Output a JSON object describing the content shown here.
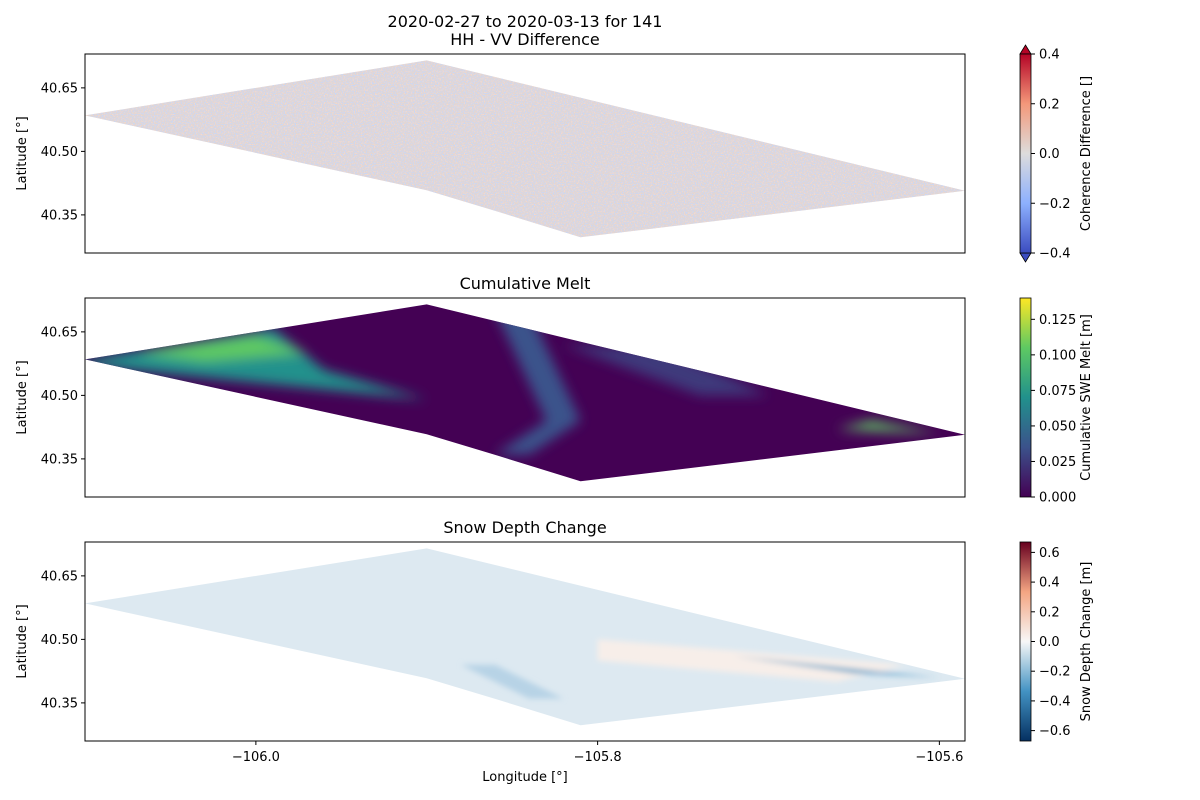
{
  "figure": {
    "title_line1": "2020-02-27 to 2020-03-13 for 141",
    "xlabel": "Longitude [°]"
  },
  "chart_data": [
    {
      "type": "heatmap",
      "title": "HH - VV Difference",
      "ylabel": "Latitude [°]",
      "xlim": [
        -106.1,
        -105.585
      ],
      "ylim": [
        40.26,
        40.73
      ],
      "yticks": [
        40.35,
        40.5,
        40.65
      ],
      "ytick_labels": [
        "40.35",
        "40.50",
        "40.65"
      ],
      "colormap": "coolwarm",
      "colors": [
        "#3b4cc0",
        "#8db0fe",
        "#dddcdc",
        "#f4987a",
        "#b40426"
      ],
      "colorbar": {
        "label": "Coherence Difference []",
        "range": [
          -0.4,
          0.4
        ],
        "ticks": [
          -0.4,
          -0.2,
          0.0,
          0.2,
          0.4
        ],
        "tick_labels": [
          "−0.4",
          "−0.2",
          "0.0",
          "0.2",
          "0.4"
        ],
        "extend": "both"
      }
    },
    {
      "type": "heatmap",
      "title": "Cumulative Melt",
      "ylabel": "Latitude [°]",
      "xlim": [
        -106.1,
        -105.585
      ],
      "ylim": [
        40.26,
        40.73
      ],
      "yticks": [
        40.35,
        40.5,
        40.65
      ],
      "ytick_labels": [
        "40.35",
        "40.50",
        "40.65"
      ],
      "colormap": "viridis",
      "colors": [
        "#440154",
        "#3b528b",
        "#21918c",
        "#5ec962",
        "#fde725"
      ],
      "colorbar": {
        "label": "Cumulative SWE Melt [m]",
        "range": [
          0.0,
          0.14
        ],
        "ticks": [
          0.0,
          0.025,
          0.05,
          0.075,
          0.1,
          0.125
        ],
        "tick_labels": [
          "0.000",
          "0.025",
          "0.050",
          "0.075",
          "0.100",
          "0.125"
        ],
        "extend": "neither"
      }
    },
    {
      "type": "heatmap",
      "title": "Snow Depth Change",
      "ylabel": "Latitude [°]",
      "xlabel": "Longitude [°]",
      "xlim": [
        -106.1,
        -105.585
      ],
      "ylim": [
        40.26,
        40.73
      ],
      "xticks": [
        -106.0,
        -105.8,
        -105.6
      ],
      "xtick_labels": [
        "−106.0",
        "−105.8",
        "−105.6"
      ],
      "yticks": [
        40.35,
        40.5,
        40.65
      ],
      "ytick_labels": [
        "40.35",
        "40.50",
        "40.65"
      ],
      "colormap": "RdBu_r",
      "colors": [
        "#053061",
        "#4393c3",
        "#f7f7f7",
        "#f4a582",
        "#67001f"
      ],
      "colorbar": {
        "label": "Snow Depth Change [m]",
        "range": [
          -0.67,
          0.67
        ],
        "ticks": [
          -0.6,
          -0.4,
          -0.2,
          0.0,
          0.2,
          0.4,
          0.6
        ],
        "tick_labels": [
          "−0.6",
          "−0.4",
          "−0.2",
          "0.0",
          "0.2",
          "0.4",
          "0.6"
        ],
        "extend": "neither"
      }
    }
  ]
}
